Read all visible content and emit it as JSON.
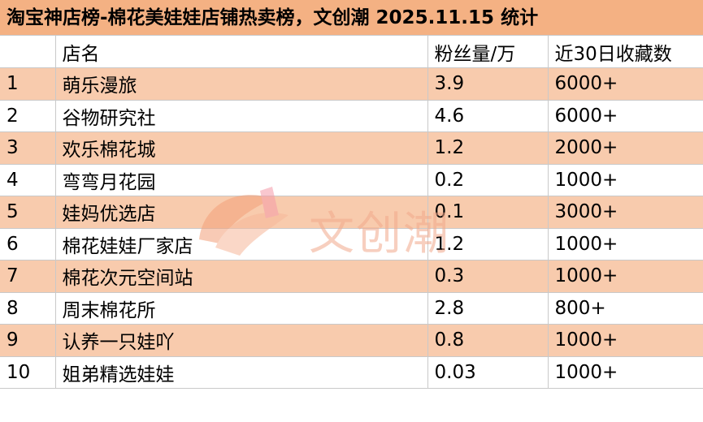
{
  "title": "淘宝神店榜-棉花美娃娃店铺热卖榜，文创潮 2025.11.15 统计",
  "columns": [
    "",
    "店名",
    "粉丝量/万",
    "近30日收藏数"
  ],
  "rows": [
    {
      "rank": "1",
      "name": "萌乐漫旅",
      "fans": "3.9",
      "favorites": "6000+"
    },
    {
      "rank": "2",
      "name": "谷物研究社",
      "fans": "4.6",
      "favorites": "6000+"
    },
    {
      "rank": "3",
      "name": "欢乐棉花城",
      "fans": "1.2",
      "favorites": "2000+"
    },
    {
      "rank": "4",
      "name": "弯弯月花园",
      "fans": "0.2",
      "favorites": "1000+"
    },
    {
      "rank": "5",
      "name": "娃妈优选店",
      "fans": "0.1",
      "favorites": "3000+"
    },
    {
      "rank": "6",
      "name": "棉花娃娃厂家店",
      "fans": "1.2",
      "favorites": "1000+"
    },
    {
      "rank": "7",
      "name": "棉花次元空间站",
      "fans": "0.3",
      "favorites": "1000+"
    },
    {
      "rank": "8",
      "name": "周末棉花所",
      "fans": "2.8",
      "favorites": "800+"
    },
    {
      "rank": "9",
      "name": "认养一只娃吖",
      "fans": "0.8",
      "favorites": "1000+"
    },
    {
      "rank": "10",
      "name": "姐弟精选娃娃",
      "fans": "0.03",
      "favorites": "1000+"
    }
  ],
  "watermark": {
    "text": "文创潮",
    "logo": "wenchuangchao-logo-icon"
  },
  "colors": {
    "title_bg": "#f4b183",
    "odd_row_bg": "#f8cbad",
    "even_row_bg": "#ffffff",
    "grid": "#c9c9c9"
  }
}
